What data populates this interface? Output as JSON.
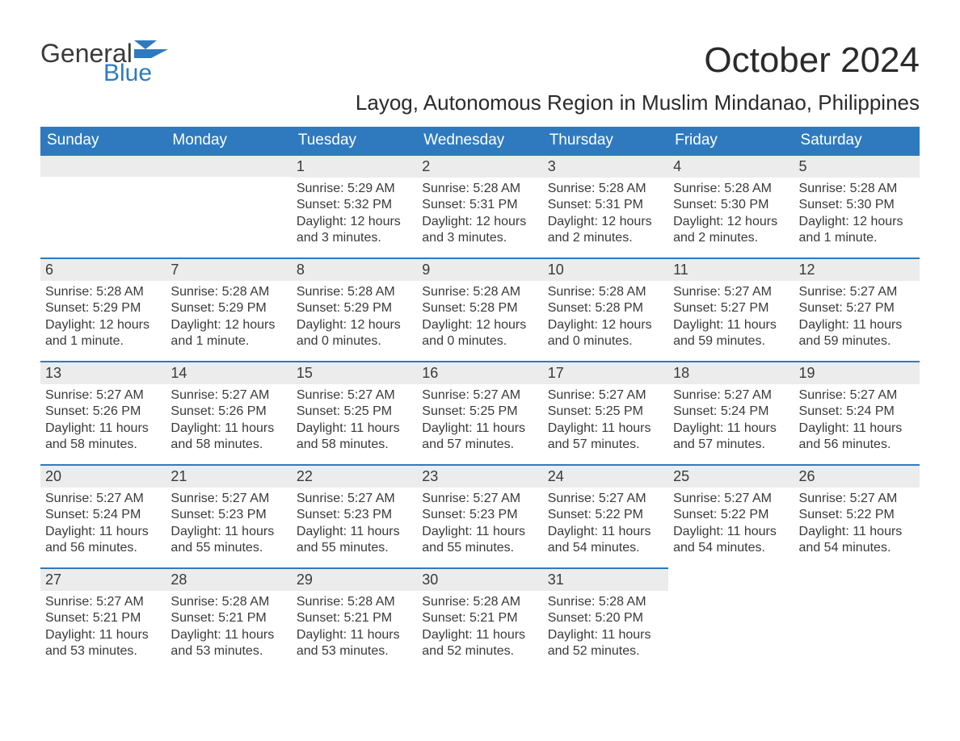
{
  "brand": {
    "word1": "General",
    "word2": "Blue",
    "accent_color": "#2f7abf"
  },
  "title": "October 2024",
  "location": "Layog, Autonomous Region in Muslim Mindanao, Philippines",
  "weekday_headers": [
    "Sunday",
    "Monday",
    "Tuesday",
    "Wednesday",
    "Thursday",
    "Friday",
    "Saturday"
  ],
  "colors": {
    "header_bg": "#2f7abf",
    "header_text": "#ffffff",
    "daybar_bg": "#ececec",
    "daybar_border": "#2f7abf",
    "body_text": "#3a3a3a",
    "page_bg": "#ffffff"
  },
  "typography": {
    "title_fontsize": 44,
    "location_fontsize": 26,
    "header_fontsize": 19,
    "daynum_fontsize": 18,
    "body_fontsize": 16,
    "font_family": "Arial"
  },
  "layout": {
    "columns": 7,
    "rows": 5,
    "leading_blanks": 2,
    "trailing_blanks": 2
  },
  "days": [
    {
      "n": "1",
      "sunrise": "Sunrise: 5:29 AM",
      "sunset": "Sunset: 5:32 PM",
      "dl1": "Daylight: 12 hours",
      "dl2": "and 3 minutes."
    },
    {
      "n": "2",
      "sunrise": "Sunrise: 5:28 AM",
      "sunset": "Sunset: 5:31 PM",
      "dl1": "Daylight: 12 hours",
      "dl2": "and 3 minutes."
    },
    {
      "n": "3",
      "sunrise": "Sunrise: 5:28 AM",
      "sunset": "Sunset: 5:31 PM",
      "dl1": "Daylight: 12 hours",
      "dl2": "and 2 minutes."
    },
    {
      "n": "4",
      "sunrise": "Sunrise: 5:28 AM",
      "sunset": "Sunset: 5:30 PM",
      "dl1": "Daylight: 12 hours",
      "dl2": "and 2 minutes."
    },
    {
      "n": "5",
      "sunrise": "Sunrise: 5:28 AM",
      "sunset": "Sunset: 5:30 PM",
      "dl1": "Daylight: 12 hours",
      "dl2": "and 1 minute."
    },
    {
      "n": "6",
      "sunrise": "Sunrise: 5:28 AM",
      "sunset": "Sunset: 5:29 PM",
      "dl1": "Daylight: 12 hours",
      "dl2": "and 1 minute."
    },
    {
      "n": "7",
      "sunrise": "Sunrise: 5:28 AM",
      "sunset": "Sunset: 5:29 PM",
      "dl1": "Daylight: 12 hours",
      "dl2": "and 1 minute."
    },
    {
      "n": "8",
      "sunrise": "Sunrise: 5:28 AM",
      "sunset": "Sunset: 5:29 PM",
      "dl1": "Daylight: 12 hours",
      "dl2": "and 0 minutes."
    },
    {
      "n": "9",
      "sunrise": "Sunrise: 5:28 AM",
      "sunset": "Sunset: 5:28 PM",
      "dl1": "Daylight: 12 hours",
      "dl2": "and 0 minutes."
    },
    {
      "n": "10",
      "sunrise": "Sunrise: 5:28 AM",
      "sunset": "Sunset: 5:28 PM",
      "dl1": "Daylight: 12 hours",
      "dl2": "and 0 minutes."
    },
    {
      "n": "11",
      "sunrise": "Sunrise: 5:27 AM",
      "sunset": "Sunset: 5:27 PM",
      "dl1": "Daylight: 11 hours",
      "dl2": "and 59 minutes."
    },
    {
      "n": "12",
      "sunrise": "Sunrise: 5:27 AM",
      "sunset": "Sunset: 5:27 PM",
      "dl1": "Daylight: 11 hours",
      "dl2": "and 59 minutes."
    },
    {
      "n": "13",
      "sunrise": "Sunrise: 5:27 AM",
      "sunset": "Sunset: 5:26 PM",
      "dl1": "Daylight: 11 hours",
      "dl2": "and 58 minutes."
    },
    {
      "n": "14",
      "sunrise": "Sunrise: 5:27 AM",
      "sunset": "Sunset: 5:26 PM",
      "dl1": "Daylight: 11 hours",
      "dl2": "and 58 minutes."
    },
    {
      "n": "15",
      "sunrise": "Sunrise: 5:27 AM",
      "sunset": "Sunset: 5:25 PM",
      "dl1": "Daylight: 11 hours",
      "dl2": "and 58 minutes."
    },
    {
      "n": "16",
      "sunrise": "Sunrise: 5:27 AM",
      "sunset": "Sunset: 5:25 PM",
      "dl1": "Daylight: 11 hours",
      "dl2": "and 57 minutes."
    },
    {
      "n": "17",
      "sunrise": "Sunrise: 5:27 AM",
      "sunset": "Sunset: 5:25 PM",
      "dl1": "Daylight: 11 hours",
      "dl2": "and 57 minutes."
    },
    {
      "n": "18",
      "sunrise": "Sunrise: 5:27 AM",
      "sunset": "Sunset: 5:24 PM",
      "dl1": "Daylight: 11 hours",
      "dl2": "and 57 minutes."
    },
    {
      "n": "19",
      "sunrise": "Sunrise: 5:27 AM",
      "sunset": "Sunset: 5:24 PM",
      "dl1": "Daylight: 11 hours",
      "dl2": "and 56 minutes."
    },
    {
      "n": "20",
      "sunrise": "Sunrise: 5:27 AM",
      "sunset": "Sunset: 5:24 PM",
      "dl1": "Daylight: 11 hours",
      "dl2": "and 56 minutes."
    },
    {
      "n": "21",
      "sunrise": "Sunrise: 5:27 AM",
      "sunset": "Sunset: 5:23 PM",
      "dl1": "Daylight: 11 hours",
      "dl2": "and 55 minutes."
    },
    {
      "n": "22",
      "sunrise": "Sunrise: 5:27 AM",
      "sunset": "Sunset: 5:23 PM",
      "dl1": "Daylight: 11 hours",
      "dl2": "and 55 minutes."
    },
    {
      "n": "23",
      "sunrise": "Sunrise: 5:27 AM",
      "sunset": "Sunset: 5:23 PM",
      "dl1": "Daylight: 11 hours",
      "dl2": "and 55 minutes."
    },
    {
      "n": "24",
      "sunrise": "Sunrise: 5:27 AM",
      "sunset": "Sunset: 5:22 PM",
      "dl1": "Daylight: 11 hours",
      "dl2": "and 54 minutes."
    },
    {
      "n": "25",
      "sunrise": "Sunrise: 5:27 AM",
      "sunset": "Sunset: 5:22 PM",
      "dl1": "Daylight: 11 hours",
      "dl2": "and 54 minutes."
    },
    {
      "n": "26",
      "sunrise": "Sunrise: 5:27 AM",
      "sunset": "Sunset: 5:22 PM",
      "dl1": "Daylight: 11 hours",
      "dl2": "and 54 minutes."
    },
    {
      "n": "27",
      "sunrise": "Sunrise: 5:27 AM",
      "sunset": "Sunset: 5:21 PM",
      "dl1": "Daylight: 11 hours",
      "dl2": "and 53 minutes."
    },
    {
      "n": "28",
      "sunrise": "Sunrise: 5:28 AM",
      "sunset": "Sunset: 5:21 PM",
      "dl1": "Daylight: 11 hours",
      "dl2": "and 53 minutes."
    },
    {
      "n": "29",
      "sunrise": "Sunrise: 5:28 AM",
      "sunset": "Sunset: 5:21 PM",
      "dl1": "Daylight: 11 hours",
      "dl2": "and 53 minutes."
    },
    {
      "n": "30",
      "sunrise": "Sunrise: 5:28 AM",
      "sunset": "Sunset: 5:21 PM",
      "dl1": "Daylight: 11 hours",
      "dl2": "and 52 minutes."
    },
    {
      "n": "31",
      "sunrise": "Sunrise: 5:28 AM",
      "sunset": "Sunset: 5:20 PM",
      "dl1": "Daylight: 11 hours",
      "dl2": "and 52 minutes."
    }
  ]
}
